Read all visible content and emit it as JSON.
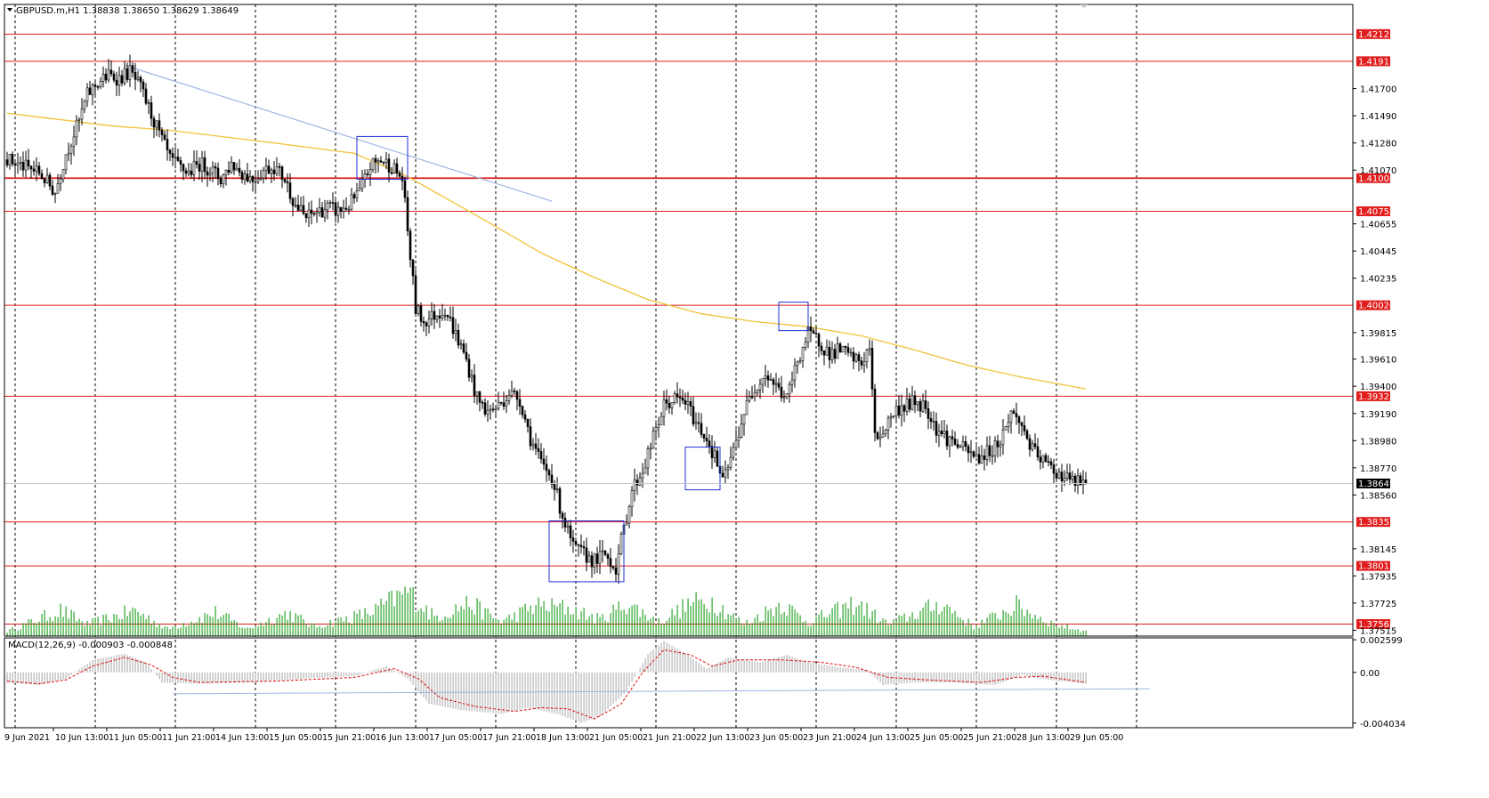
{
  "header": {
    "symbol_line": "GBPUSD.m,H1  1.38838 1.38650 1.38629 1.38649",
    "macd_line": "MACD(12,26,9) -0.000903 -0.000848"
  },
  "colors": {
    "background": "#ffffff",
    "candle": "#000000",
    "sr_line": "#e11d1d",
    "price_tag_bg": "#e11d1d",
    "current_tag_bg": "#000000",
    "ma": "#f2c23a",
    "trendline": "#9db7e0",
    "volume": "#2ea52e",
    "macd_hist": "#c0c0c0",
    "macd_signal": "#e11d1d",
    "box": "#1f2fd6",
    "grid": "#000000"
  },
  "chart_data": [
    {
      "type": "candlestick",
      "symbol": "GBPUSD.m",
      "timeframe": "H1",
      "ylim": [
        1.3747,
        1.4235
      ],
      "y_ticks": [
        "1.41700",
        "1.41490",
        "1.41280",
        "1.41070",
        "1.40655",
        "1.40445",
        "1.40235",
        "1.39815",
        "1.39610",
        "1.39400",
        "1.39190",
        "1.38980",
        "1.38770",
        "1.38560",
        "1.38145",
        "1.37935",
        "1.37725",
        "1.37515"
      ],
      "x_ticks": [
        "9 Jun 2021",
        "10 Jun 13:00",
        "11 Jun 05:00",
        "11 Jun 21:00",
        "14 Jun 13:00",
        "15 Jun 05:00",
        "15 Jun 21:00",
        "16 Jun 13:00",
        "17 Jun 05:00",
        "17 Jun 21:00",
        "18 Jun 13:00",
        "21 Jun 05:00",
        "21 Jun 21:00",
        "22 Jun 13:00",
        "23 Jun 05:00",
        "23 Jun 21:00",
        "24 Jun 13:00",
        "25 Jun 05:00",
        "25 Jun 21:00",
        "28 Jun 13:00",
        "29 Jun 05:00"
      ],
      "close_path": [
        [
          0,
          1.4115
        ],
        [
          6,
          1.411
        ],
        [
          12,
          1.4105
        ],
        [
          18,
          1.409
        ],
        [
          22,
          1.412
        ],
        [
          27,
          1.4145
        ],
        [
          30,
          1.4165
        ],
        [
          34,
          1.4175
        ],
        [
          38,
          1.418
        ],
        [
          42,
          1.4178
        ],
        [
          46,
          1.4183
        ],
        [
          50,
          1.417
        ],
        [
          54,
          1.415
        ],
        [
          58,
          1.413
        ],
        [
          61,
          1.4115
        ],
        [
          64,
          1.411
        ],
        [
          68,
          1.4105
        ],
        [
          72,
          1.4112
        ],
        [
          76,
          1.4108
        ],
        [
          80,
          1.41
        ],
        [
          84,
          1.4112
        ],
        [
          88,
          1.4105
        ],
        [
          92,
          1.41
        ],
        [
          96,
          1.4107
        ],
        [
          100,
          1.411
        ],
        [
          104,
          1.41
        ],
        [
          108,
          1.408
        ],
        [
          112,
          1.407
        ],
        [
          116,
          1.4075
        ],
        [
          120,
          1.4078
        ],
        [
          124,
          1.4075
        ],
        [
          128,
          1.408
        ],
        [
          132,
          1.409
        ],
        [
          136,
          1.411
        ],
        [
          140,
          1.4115
        ],
        [
          144,
          1.411
        ],
        [
          148,
          1.41
        ],
        [
          150,
          1.406
        ],
        [
          153,
          1.4
        ],
        [
          156,
          1.399
        ],
        [
          160,
          1.3995
        ],
        [
          164,
          1.4
        ],
        [
          168,
          1.398
        ],
        [
          172,
          1.396
        ],
        [
          176,
          1.393
        ],
        [
          180,
          1.392
        ],
        [
          184,
          1.3925
        ],
        [
          188,
          1.3935
        ],
        [
          192,
          1.393
        ],
        [
          196,
          1.39
        ],
        [
          200,
          1.388
        ],
        [
          204,
          1.387
        ],
        [
          208,
          1.384
        ],
        [
          212,
          1.3815
        ],
        [
          216,
          1.381
        ],
        [
          220,
          1.3805
        ],
        [
          224,
          1.381
        ],
        [
          228,
          1.38
        ],
        [
          231,
          1.383
        ],
        [
          234,
          1.386
        ],
        [
          238,
          1.3875
        ],
        [
          242,
          1.39
        ],
        [
          246,
          1.3925
        ],
        [
          250,
          1.393
        ],
        [
          254,
          1.3928
        ],
        [
          258,
          1.3912
        ],
        [
          262,
          1.39
        ],
        [
          266,
          1.388
        ],
        [
          268,
          1.3865
        ],
        [
          272,
          1.389
        ],
        [
          276,
          1.392
        ],
        [
          280,
          1.394
        ],
        [
          284,
          1.395
        ],
        [
          288,
          1.394
        ],
        [
          292,
          1.393
        ],
        [
          296,
          1.396
        ],
        [
          300,
          1.398
        ],
        [
          304,
          1.3975
        ],
        [
          308,
          1.3965
        ],
        [
          312,
          1.3968
        ],
        [
          316,
          1.3962
        ],
        [
          320,
          1.3958
        ],
        [
          323,
          1.397
        ],
        [
          325,
          1.39
        ],
        [
          328,
          1.3905
        ],
        [
          332,
          1.392
        ],
        [
          336,
          1.3925
        ],
        [
          340,
          1.3928
        ],
        [
          344,
          1.3925
        ],
        [
          348,
          1.3908
        ],
        [
          352,
          1.39
        ],
        [
          356,
          1.3895
        ],
        [
          360,
          1.3888
        ],
        [
          364,
          1.3885
        ],
        [
          368,
          1.389
        ],
        [
          372,
          1.3898
        ],
        [
          376,
          1.392
        ],
        [
          380,
          1.391
        ],
        [
          384,
          1.389
        ],
        [
          388,
          1.3882
        ],
        [
          392,
          1.3875
        ],
        [
          396,
          1.387
        ],
        [
          400,
          1.3866
        ],
        [
          404,
          1.38649
        ]
      ],
      "moving_average": [
        [
          0,
          1.4151
        ],
        [
          40,
          1.4141
        ],
        [
          60,
          1.4138
        ],
        [
          100,
          1.4128
        ],
        [
          130,
          1.412
        ],
        [
          150,
          1.4102
        ],
        [
          180,
          1.4067
        ],
        [
          200,
          1.4043
        ],
        [
          220,
          1.4024
        ],
        [
          240,
          1.4007
        ],
        [
          260,
          1.3996
        ],
        [
          280,
          1.399
        ],
        [
          300,
          1.3986
        ],
        [
          320,
          1.3979
        ],
        [
          340,
          1.3968
        ],
        [
          360,
          1.3956
        ],
        [
          380,
          1.3947
        ],
        [
          404,
          1.3938
        ]
      ],
      "trendline": [
        [
          44,
          1.4188
        ],
        [
          204,
          1.4083
        ]
      ],
      "horizontal_levels": [
        "1.42121",
        "1.41911",
        "1.41008",
        "1.40752",
        "1.40026",
        "1.39323",
        "1.38352",
        "1.38012",
        "1.37563"
      ],
      "current_price": "1.38649",
      "zones": [
        {
          "x": [
            131,
            150
          ],
          "y": [
            1.41,
            1.4133
          ]
        },
        {
          "x": [
            289,
            300
          ],
          "y": [
            1.3983,
            1.4005
          ]
        },
        {
          "x": [
            254,
            267
          ],
          "y": [
            1.386,
            1.3893
          ]
        },
        {
          "x": [
            203,
            231
          ],
          "y": [
            1.3789,
            1.3836
          ]
        }
      ],
      "volume_peaks": [
        [
          0,
          0.1
        ],
        [
          20,
          0.55
        ],
        [
          30,
          0.25
        ],
        [
          48,
          0.55
        ],
        [
          60,
          0.15
        ],
        [
          78,
          0.5
        ],
        [
          90,
          0.15
        ],
        [
          105,
          0.5
        ],
        [
          115,
          0.2
        ],
        [
          136,
          0.5
        ],
        [
          150,
          0.95
        ],
        [
          160,
          0.4
        ],
        [
          173,
          0.7
        ],
        [
          185,
          0.3
        ],
        [
          198,
          0.65
        ],
        [
          210,
          0.6
        ],
        [
          222,
          0.35
        ],
        [
          232,
          0.7
        ],
        [
          244,
          0.3
        ],
        [
          256,
          0.7
        ],
        [
          264,
          0.75
        ],
        [
          276,
          0.25
        ],
        [
          290,
          0.7
        ],
        [
          300,
          0.3
        ],
        [
          318,
          0.7
        ],
        [
          330,
          0.25
        ],
        [
          350,
          0.7
        ],
        [
          362,
          0.2
        ],
        [
          378,
          0.65
        ],
        [
          392,
          0.25
        ],
        [
          404,
          0.1
        ]
      ]
    },
    {
      "type": "macd",
      "label": "MACD(12,26,9) -0.000903 -0.000848",
      "ylim": [
        -0.0044,
        0.00275
      ],
      "y_ticks": [
        "0.002599",
        "0.00",
        "-0.004034"
      ],
      "histogram_path": [
        [
          0,
          -0.0008
        ],
        [
          12,
          -0.001
        ],
        [
          22,
          -0.0005
        ],
        [
          32,
          0.001
        ],
        [
          44,
          0.0015
        ],
        [
          52,
          0.0008
        ],
        [
          58,
          -0.0008
        ],
        [
          70,
          -0.0009
        ],
        [
          90,
          -0.0008
        ],
        [
          110,
          -0.0005
        ],
        [
          130,
          -0.0003
        ],
        [
          142,
          0.0005
        ],
        [
          150,
          -0.0005
        ],
        [
          158,
          -0.0025
        ],
        [
          170,
          -0.003
        ],
        [
          185,
          -0.0033
        ],
        [
          195,
          -0.0028
        ],
        [
          206,
          -0.0033
        ],
        [
          215,
          -0.004
        ],
        [
          222,
          -0.0035
        ],
        [
          232,
          -0.0015
        ],
        [
          240,
          0.0015
        ],
        [
          246,
          0.0025
        ],
        [
          254,
          0.0015
        ],
        [
          262,
          0.0003
        ],
        [
          270,
          0.0012
        ],
        [
          282,
          0.0008
        ],
        [
          292,
          0.0014
        ],
        [
          300,
          0.0008
        ],
        [
          312,
          0.0004
        ],
        [
          322,
          0.0002
        ],
        [
          328,
          -0.001
        ],
        [
          340,
          -0.0008
        ],
        [
          355,
          -0.0008
        ],
        [
          370,
          -0.001
        ],
        [
          380,
          -0.0002
        ],
        [
          390,
          -0.0006
        ],
        [
          404,
          -0.0009
        ]
      ],
      "signal_path": [
        [
          0,
          -0.0007
        ],
        [
          12,
          -0.0009
        ],
        [
          22,
          -0.0006
        ],
        [
          32,
          0.0005
        ],
        [
          44,
          0.0012
        ],
        [
          54,
          0.0006
        ],
        [
          62,
          -0.0004
        ],
        [
          72,
          -0.0008
        ],
        [
          100,
          -0.0007
        ],
        [
          130,
          -0.0004
        ],
        [
          145,
          0.0003
        ],
        [
          154,
          -0.0005
        ],
        [
          162,
          -0.002
        ],
        [
          175,
          -0.0027
        ],
        [
          190,
          -0.0031
        ],
        [
          200,
          -0.0028
        ],
        [
          210,
          -0.0029
        ],
        [
          220,
          -0.0037
        ],
        [
          230,
          -0.0025
        ],
        [
          238,
          0.0
        ],
        [
          246,
          0.0018
        ],
        [
          256,
          0.0014
        ],
        [
          264,
          0.0005
        ],
        [
          274,
          0.001
        ],
        [
          290,
          0.001
        ],
        [
          305,
          0.0008
        ],
        [
          318,
          0.0004
        ],
        [
          330,
          -0.0004
        ],
        [
          345,
          -0.0006
        ],
        [
          365,
          -0.0008
        ],
        [
          378,
          -0.0004
        ],
        [
          388,
          -0.0003
        ],
        [
          404,
          -0.0008
        ]
      ],
      "trendline": [
        [
          62,
          -0.0017
        ],
        [
          428,
          -0.0013
        ]
      ]
    }
  ]
}
